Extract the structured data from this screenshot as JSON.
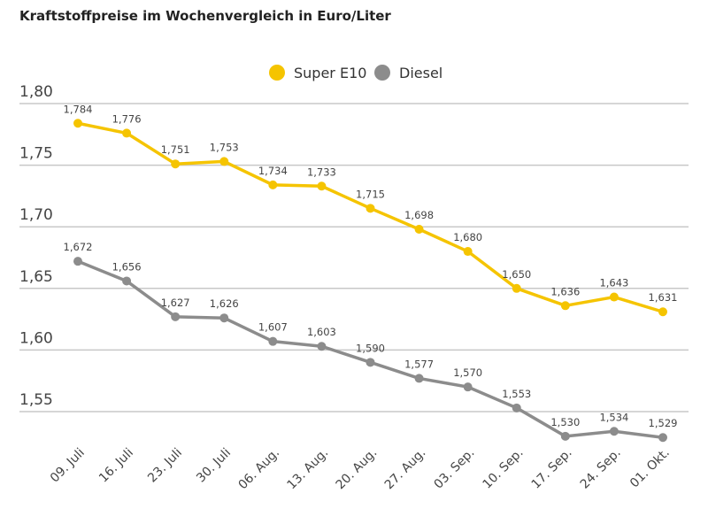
{
  "chart_data": {
    "type": "line",
    "title": "Kraftstoffpreise im Wochenvergleich in Euro/Liter",
    "xlabel": "",
    "ylabel": "",
    "categories": [
      "09. Juli",
      "16. Juli",
      "23. Juli",
      "30. Juli",
      "06. Aug.",
      "13. Aug.",
      "20. Aug.",
      "27. Aug.",
      "03. Sep.",
      "10. Sep.",
      "17. Sep.",
      "24. Sep.",
      "01. Okt."
    ],
    "ylim": [
      1.52,
      1.8
    ],
    "yticks": [
      "1,80",
      "1,75",
      "1,70",
      "1,65",
      "1,60",
      "1,55"
    ],
    "ytick_values": [
      1.8,
      1.75,
      1.7,
      1.65,
      1.6,
      1.55
    ],
    "grid": true,
    "legend": "top-center",
    "series": [
      {
        "name": "Super E10",
        "color": "#f5c400",
        "values": [
          1.784,
          1.776,
          1.751,
          1.753,
          1.734,
          1.733,
          1.715,
          1.698,
          1.68,
          1.65,
          1.636,
          1.643,
          1.631
        ],
        "labels": [
          "1,784",
          "1,776",
          "1,751",
          "1,753",
          "1,734",
          "1,733",
          "1,715",
          "1,698",
          "1,680",
          "1,650",
          "1,636",
          "1,643",
          "1,631"
        ]
      },
      {
        "name": "Diesel",
        "color": "#8c8c8c",
        "values": [
          1.672,
          1.656,
          1.627,
          1.626,
          1.607,
          1.603,
          1.59,
          1.577,
          1.57,
          1.553,
          1.53,
          1.534,
          1.529
        ],
        "labels": [
          "1,672",
          "1,656",
          "1,627",
          "1,626",
          "1,607",
          "1,603",
          "1,590",
          "1,577",
          "1,570",
          "1,553",
          "1,530",
          "1,534",
          "1,529"
        ]
      }
    ]
  }
}
